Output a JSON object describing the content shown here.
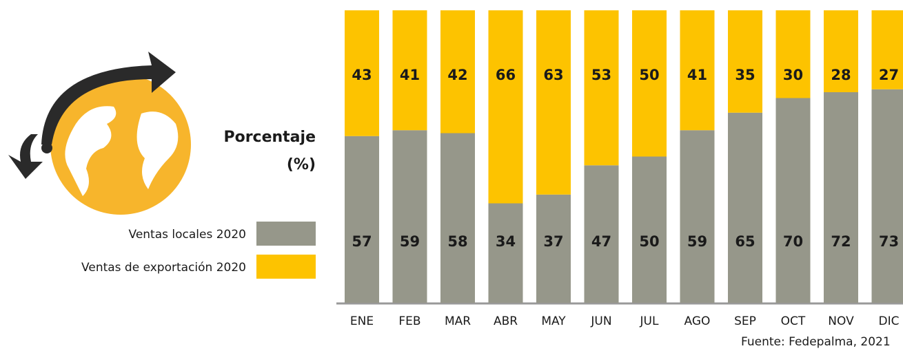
{
  "chart_data": {
    "type": "stacked_bar",
    "ylabel": "Porcentaje (%)",
    "categories": [
      "ENE",
      "FEB",
      "MAR",
      "ABR",
      "MAY",
      "JUN",
      "JUL",
      "AGO",
      "SEP",
      "OCT",
      "NOV",
      "DIC"
    ],
    "series": [
      {
        "name": "Ventas locales 2020",
        "color": "#96978a",
        "values": [
          57,
          59,
          58,
          34,
          37,
          47,
          50,
          59,
          65,
          70,
          72,
          73
        ]
      },
      {
        "name": "Ventas de exportación 2020",
        "color": "#fdc300",
        "values": [
          43,
          41,
          42,
          66,
          63,
          53,
          50,
          41,
          35,
          30,
          28,
          27
        ]
      }
    ],
    "source": "Fuente: Fedepalma, 2021"
  }
}
